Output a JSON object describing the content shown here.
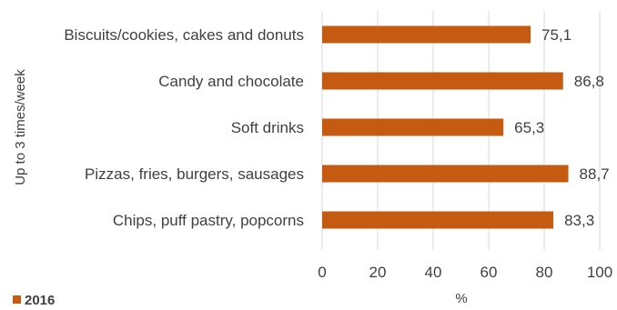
{
  "chart_data": {
    "type": "bar",
    "orientation": "horizontal",
    "categories": [
      "Biscuits/cookies, cakes and donuts",
      "Candy and chocolate",
      "Soft drinks",
      "Pizzas, fries, burgers, sausages",
      "Chips, puff pastry, popcorns"
    ],
    "series": [
      {
        "name": "2016",
        "values": [
          75.1,
          86.8,
          65.3,
          88.7,
          83.3
        ],
        "value_labels": [
          "75,1",
          "86,8",
          "65,3",
          "88,7",
          "83,3"
        ],
        "color": "#C55A11"
      }
    ],
    "xlabel": "%",
    "ylabel": "Up to 3 times/week",
    "xlim": [
      0,
      100
    ],
    "xticks": [
      0,
      20,
      40,
      60,
      80,
      100
    ],
    "xtick_labels": [
      "0",
      "20",
      "40",
      "60",
      "80",
      "100"
    ],
    "grid": "vertical",
    "grid_color": "#D9D9D9",
    "legend": "bottom-left"
  }
}
